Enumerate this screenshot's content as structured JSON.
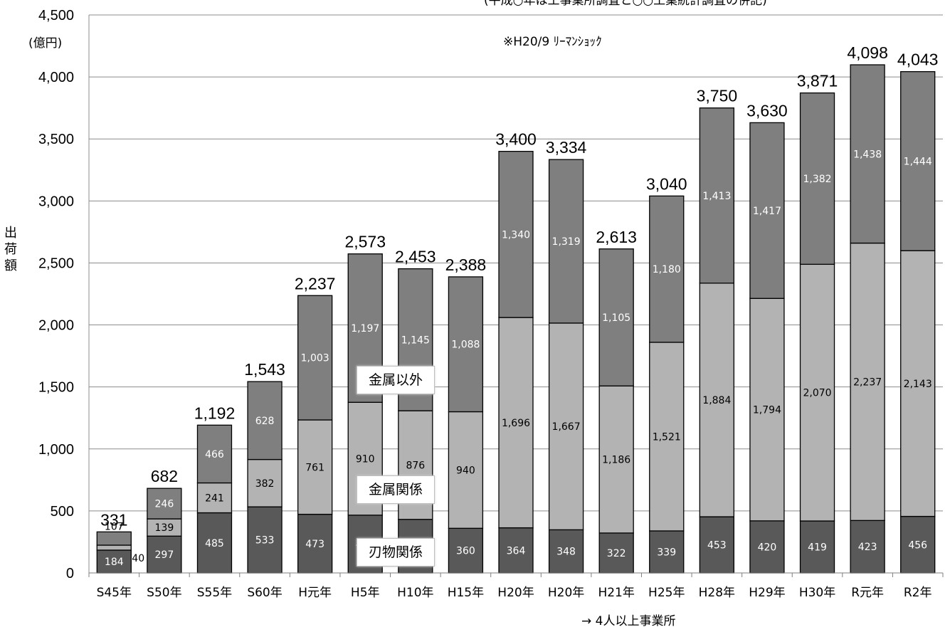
{
  "chart_data": {
    "type": "bar",
    "stacked": true,
    "title": "",
    "top_note": "(平成○年は工事業所調査と○○工業統計調査の併記)",
    "unit_label": "(億円)",
    "ylabel": "出荷額",
    "x_note": "→ 4人以上事業所",
    "annotation": "※H20/9 ﾘｰﾏﾝｼｮｯｸ",
    "ylim": [
      0,
      4500
    ],
    "yticks": [
      "0",
      "500",
      "1,000",
      "1,500",
      "2,000",
      "2,500",
      "3,000",
      "3,500",
      "4,000",
      "4,500"
    ],
    "ytick_values": [
      0,
      500,
      1000,
      1500,
      2000,
      2500,
      3000,
      3500,
      4000,
      4500
    ],
    "grid": true,
    "categories": [
      "S45年",
      "S50年",
      "S55年",
      "S60年",
      "H元年",
      "H5年",
      "H10年",
      "H15年",
      "H20年",
      "H20年",
      "H21年",
      "H25年",
      "H28年",
      "H29年",
      "H30年",
      "R元年",
      "R2年"
    ],
    "series": [
      {
        "name": "刃物関係",
        "color": "#595959",
        "values": [
          184,
          297,
          485,
          533,
          473,
          466,
          432,
          360,
          364,
          348,
          322,
          339,
          453,
          420,
          419,
          423,
          456
        ],
        "labels": [
          "184",
          "297",
          "485",
          "533",
          "473",
          "466",
          "432",
          "360",
          "364",
          "348",
          "322",
          "339",
          "453",
          "420",
          "419",
          "423",
          "456"
        ]
      },
      {
        "name": "金属関係",
        "color": "#b3b3b3",
        "values": [
          40,
          139,
          241,
          382,
          761,
          910,
          876,
          940,
          1696,
          1667,
          1186,
          1521,
          1884,
          1794,
          2070,
          2237,
          2143
        ],
        "labels": [
          "40",
          "139",
          "241",
          "382",
          "761",
          "910",
          "876",
          "940",
          "1,696",
          "1,667",
          "1,186",
          "1,521",
          "1,884",
          "1,794",
          "2,070",
          "2,237",
          "2,143"
        ]
      },
      {
        "name": "金属以外",
        "color": "#7f7f7f",
        "values": [
          107,
          246,
          466,
          628,
          1003,
          1197,
          1145,
          1088,
          1340,
          1319,
          1105,
          1180,
          1413,
          1417,
          1382,
          1438,
          1444
        ],
        "labels": [
          "107",
          "246",
          "466",
          "628",
          "1,003",
          "1,197",
          "1,145",
          "1,088",
          "1,340",
          "1,319",
          "1,105",
          "1,180",
          "1,413",
          "1,417",
          "1,382",
          "1,438",
          "1,444"
        ]
      }
    ],
    "totals": [
      331,
      682,
      1192,
      1543,
      2237,
      2573,
      2453,
      2388,
      3400,
      3334,
      2613,
      3040,
      3750,
      3630,
      3871,
      4098,
      4043
    ],
    "total_labels": [
      "331",
      "682",
      "1,192",
      "1,543",
      "2,237",
      "2,573",
      "2,453",
      "2,388",
      "3,400",
      "3,334",
      "2,613",
      "3,040",
      "3,750",
      "3,630",
      "3,871",
      "4,098",
      "4,043"
    ],
    "legend": [
      "金属以外",
      "金属関係",
      "刃物関係"
    ]
  }
}
